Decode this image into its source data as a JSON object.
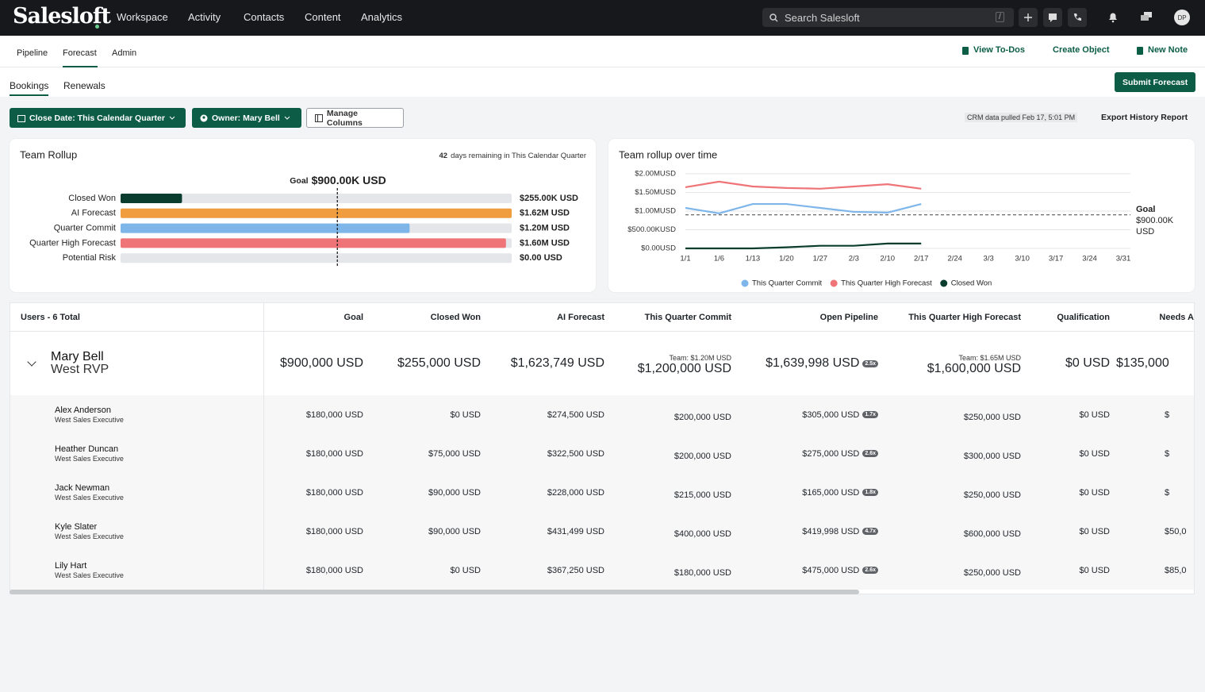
{
  "nav": {
    "logo": "Salesloft",
    "items": [
      "Workspace",
      "Activity",
      "Contacts",
      "Content",
      "Analytics"
    ],
    "search": "Search Salesloft",
    "shortcut": "/",
    "avatar": "DP"
  },
  "subnav": {
    "tabs": [
      "Pipeline",
      "Forecast",
      "Admin"
    ],
    "actions": [
      "View To-Dos",
      "Create Object",
      "New Note"
    ]
  },
  "tabs": [
    "Bookings",
    "Renewals"
  ],
  "submit": "Submit Forecast",
  "filters": [
    "Close Date: This Calendar Quarter",
    "Owner: Mary Bell",
    "Manage Columns"
  ],
  "crm_note": "CRM data pulled Feb 17, 5:01 PM",
  "export": "Export History Report",
  "rollup": {
    "title": "Team Rollup",
    "days": "42",
    "days_text": "days remaining in This Calendar Quarter",
    "goal_label": "Goal",
    "goal_value_label": "$900.00K USD",
    "goal": 900000,
    "xlim": [
      0,
      1623749
    ],
    "rows": [
      {
        "label": "Closed Won",
        "value": 255000,
        "value_label": "$255.00K USD",
        "color": "#0b3d2e"
      },
      {
        "label": "AI Forecast",
        "value": 1623749,
        "value_label": "$1.62M USD",
        "color": "#ef9d3f"
      },
      {
        "label": "Quarter Commit",
        "value": 1200000,
        "value_label": "$1.20M USD",
        "color": "#7eb6ea"
      },
      {
        "label": "Quarter High Forecast",
        "value": 1600000,
        "value_label": "$1.60M USD",
        "color": "#ee7478"
      },
      {
        "label": "Potential Risk",
        "value": 0,
        "value_label": "$0.00 USD",
        "color": "#9aa0a6"
      }
    ]
  },
  "trend": {
    "title": "Team rollup over time",
    "categories": [
      "1/1",
      "1/6",
      "1/13",
      "1/20",
      "1/27",
      "2/3",
      "2/10",
      "2/17",
      "2/24",
      "3/3",
      "3/10",
      "3/17",
      "3/24",
      "3/31"
    ],
    "ylim": [
      0,
      2000000
    ],
    "yticks": [
      {
        "value": 0,
        "label": "$0.00USD"
      },
      {
        "value": 500000,
        "label": "$500.00KUSD"
      },
      {
        "value": 1000000,
        "label": "$1.00MUSD"
      },
      {
        "value": 1500000,
        "label": "$1.50MUSD"
      },
      {
        "value": 2000000,
        "label": "$2.00MUSD"
      }
    ],
    "series": [
      {
        "name": "This Quarter Commit",
        "color": "#7eb6ea",
        "values": [
          1085000,
          940000,
          1190000,
          1190000,
          1085000,
          980000,
          960000,
          1190000,
          null,
          null,
          null,
          null,
          null,
          null
        ]
      },
      {
        "name": "This Quarter High Forecast",
        "color": "#ee7478",
        "values": [
          1640000,
          1790000,
          1660000,
          1620000,
          1600000,
          1660000,
          1720000,
          1600000,
          null,
          null,
          null,
          null,
          null,
          null
        ]
      },
      {
        "name": "Closed Won",
        "color": "#0b3d2e",
        "values": [
          0,
          0,
          0,
          30000,
          70000,
          70000,
          130000,
          130000,
          null,
          null,
          null,
          null,
          null,
          null
        ]
      }
    ],
    "goal": {
      "label": "Goal",
      "value": 900000,
      "value_label": "$900.00K USD"
    }
  },
  "table": {
    "columns": [
      "Users - 6 Total",
      "Goal",
      "Closed Won",
      "AI Forecast",
      "This Quarter Commit",
      "Open Pipeline",
      "This Quarter High Forecast",
      "Qualification",
      "Needs A"
    ],
    "lead": {
      "name": "Mary Bell",
      "role": "West RVP",
      "cells": [
        "$900,000 USD",
        "$255,000 USD",
        "$1,623,749 USD",
        "$1,200,000 USD",
        "$1,639,998 USD",
        "$1,600,000 USD",
        "$0 USD",
        "$135,000"
      ],
      "commit_team": "Team: $1.20M USD",
      "pipeline_badge": "2.5x",
      "high_team": "Team: $1.65M USD"
    },
    "rows": [
      {
        "name": "Alex Anderson",
        "role": "West Sales Executive",
        "cells": [
          "$180,000 USD",
          "$0 USD",
          "$274,500 USD",
          "$200,000 USD",
          "$305,000 USD",
          "$250,000 USD",
          "$0 USD",
          "$"
        ],
        "badge": "1.7x"
      },
      {
        "name": "Heather Duncan",
        "role": "West Sales Executive",
        "cells": [
          "$180,000 USD",
          "$75,000 USD",
          "$322,500 USD",
          "$200,000 USD",
          "$275,000 USD",
          "$300,000 USD",
          "$0 USD",
          "$"
        ],
        "badge": "2.6x"
      },
      {
        "name": "Jack Newman",
        "role": "West Sales Executive",
        "cells": [
          "$180,000 USD",
          "$90,000 USD",
          "$228,000 USD",
          "$215,000 USD",
          "$165,000 USD",
          "$250,000 USD",
          "$0 USD",
          "$"
        ],
        "badge": "1.8x"
      },
      {
        "name": "Kyle Slater",
        "role": "West Sales Executive",
        "cells": [
          "$180,000 USD",
          "$90,000 USD",
          "$431,499 USD",
          "$400,000 USD",
          "$419,998 USD",
          "$600,000 USD",
          "$0 USD",
          "$50,0"
        ],
        "badge": "4.7x"
      },
      {
        "name": "Lily Hart",
        "role": "West Sales Executive",
        "cells": [
          "$180,000 USD",
          "$0 USD",
          "$367,250 USD",
          "$180,000 USD",
          "$475,000 USD",
          "$250,000 USD",
          "$0 USD",
          "$85,0"
        ],
        "badge": "2.6x"
      }
    ]
  }
}
